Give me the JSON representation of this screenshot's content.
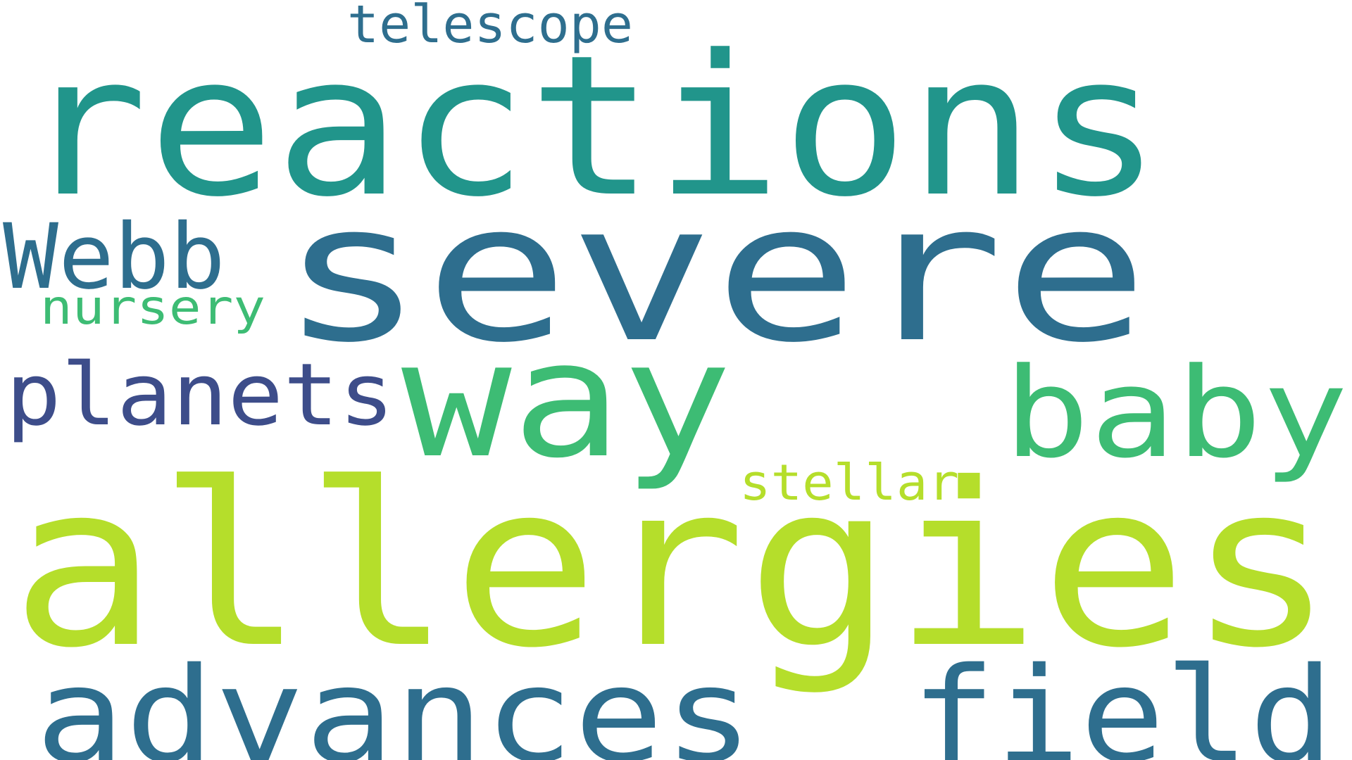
{
  "words": [
    {
      "text": "reactions",
      "color": "#21958b"
    },
    {
      "text": "severe",
      "color": "#2e6e8e"
    },
    {
      "text": "allergies",
      "color": "#b5de2b"
    },
    {
      "text": "way",
      "color": "#3dbc74"
    },
    {
      "text": "advances",
      "color": "#2e6e8e"
    },
    {
      "text": "field",
      "color": "#2e6e8e"
    },
    {
      "text": "baby",
      "color": "#3dbc74"
    },
    {
      "text": "planets",
      "color": "#3d4d8a"
    },
    {
      "text": "Webb",
      "color": "#2e6e8e"
    },
    {
      "text": "telescope",
      "color": "#2e6e8e"
    },
    {
      "text": "nursery",
      "color": "#3dbc74"
    },
    {
      "text": "stellar",
      "color": "#b5de2b"
    }
  ]
}
